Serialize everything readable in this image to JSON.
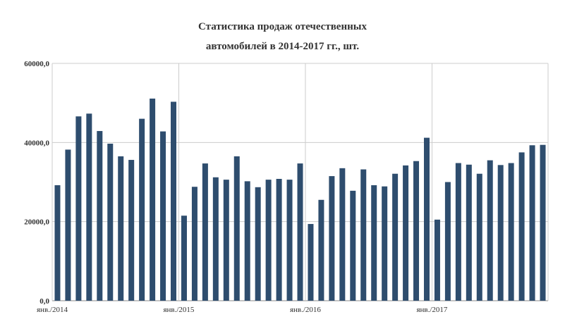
{
  "chart_data": {
    "type": "bar",
    "title_lines": [
      "Статистика продаж отечественных",
      "автомобилей в 2014-2017 гг., шт."
    ],
    "ylim": [
      0,
      60000
    ],
    "yticks": [
      {
        "value": 0,
        "label": "0,0"
      },
      {
        "value": 20000,
        "label": "20000,0"
      },
      {
        "value": 40000,
        "label": "40000,0"
      },
      {
        "value": 60000,
        "label": "60000,0"
      }
    ],
    "xlabels": [
      {
        "index": 0,
        "label": "янв./2014"
      },
      {
        "index": 12,
        "label": "янв./2015"
      },
      {
        "index": 24,
        "label": "янв./2016"
      },
      {
        "index": 36,
        "label": "янв./2017"
      }
    ],
    "grid": true,
    "bar_color": "#2e4d6e",
    "values": [
      29200,
      38200,
      46600,
      47300,
      42900,
      39700,
      36500,
      35600,
      46000,
      51100,
      42800,
      50300,
      21500,
      28800,
      34700,
      31200,
      30600,
      36500,
      30200,
      28700,
      30600,
      30800,
      30600,
      34700,
      19400,
      25500,
      31500,
      33500,
      27800,
      33200,
      29200,
      28900,
      32100,
      34200,
      35300,
      41200,
      20500,
      30000,
      34800,
      34400,
      32100,
      35500,
      34300,
      34800,
      37500,
      39300,
      39400
    ]
  }
}
